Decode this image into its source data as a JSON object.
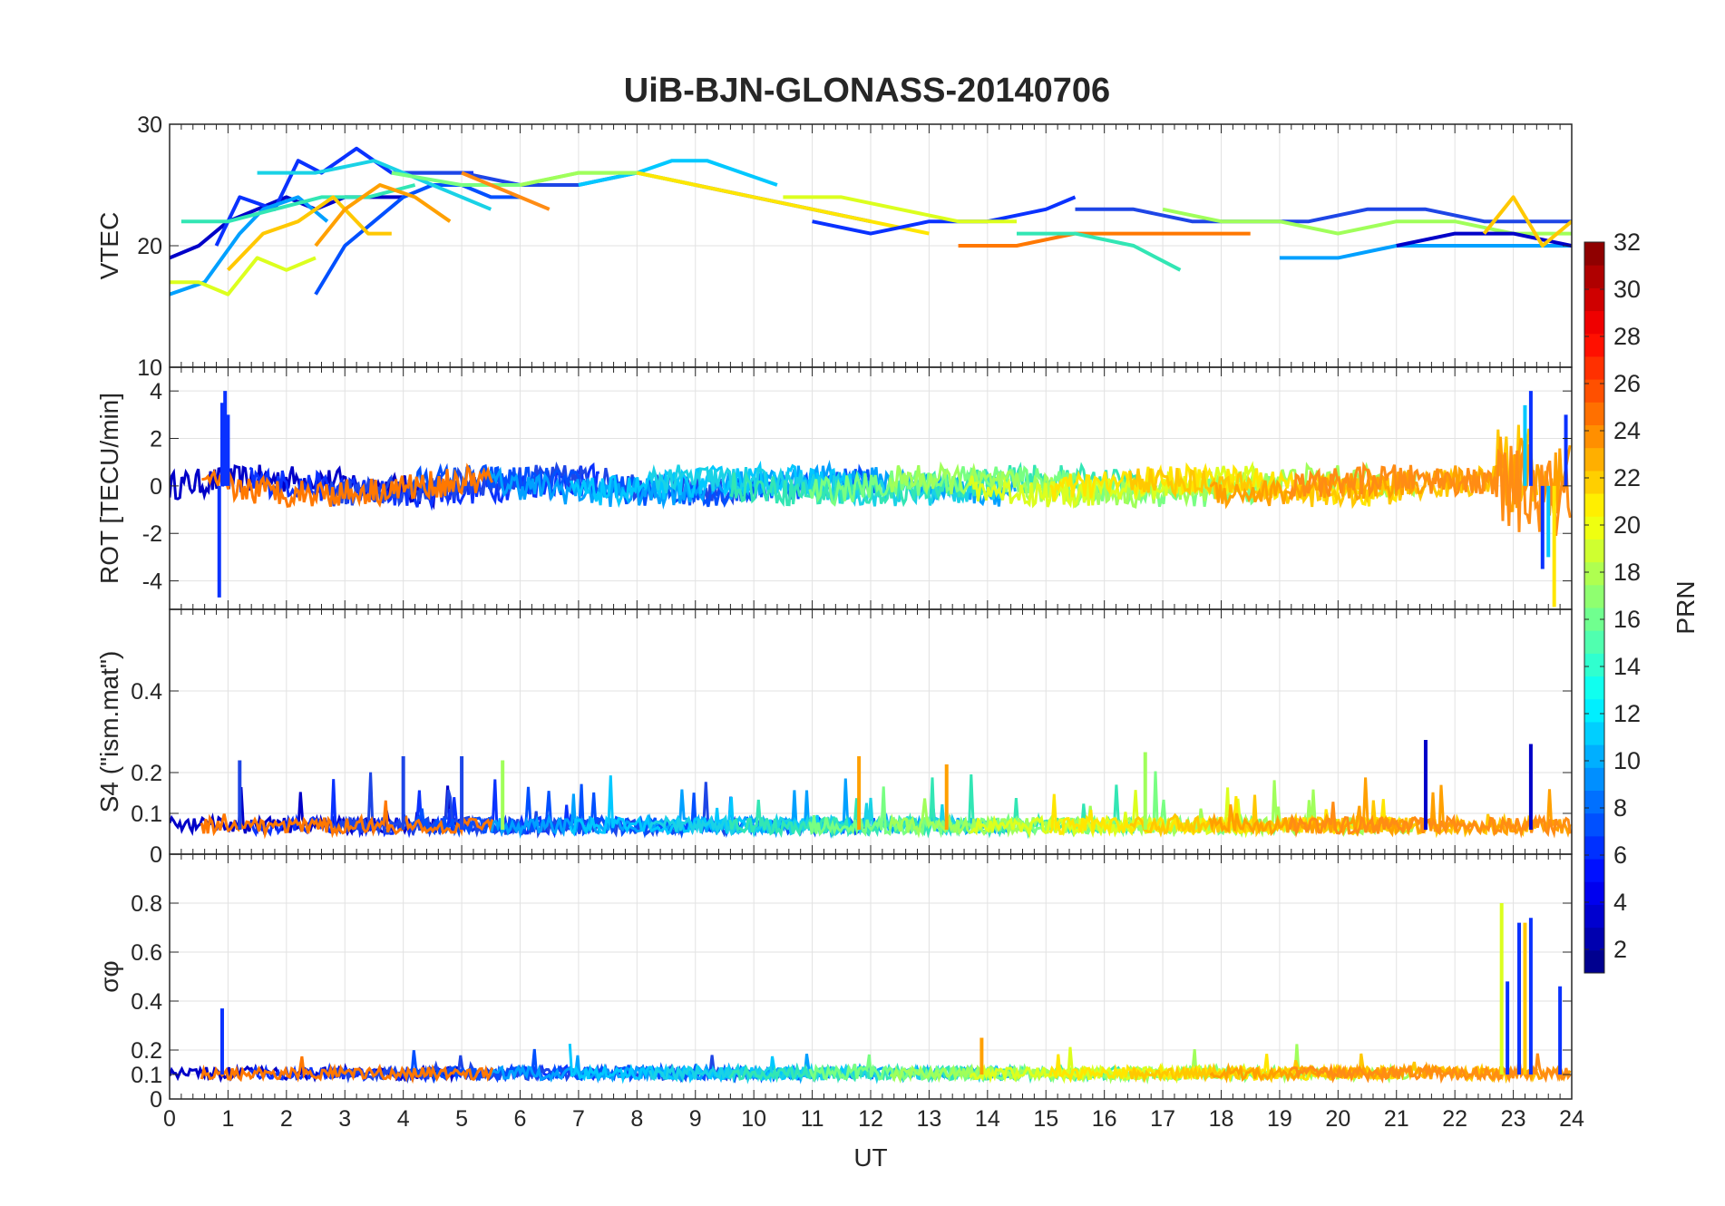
{
  "chart_data": {
    "type": "line",
    "title": "UiB-BJN-GLONASS-20140706",
    "xlabel": "UT",
    "xlim": [
      0,
      24
    ],
    "x_ticks": [
      "0",
      "1",
      "2",
      "3",
      "4",
      "5",
      "6",
      "7",
      "8",
      "9",
      "10",
      "11",
      "12",
      "13",
      "14",
      "15",
      "16",
      "17",
      "18",
      "19",
      "20",
      "21",
      "22",
      "23",
      "24"
    ],
    "grid": true,
    "panels": [
      {
        "id": "vtec",
        "ylabel": "VTEC",
        "ylim": [
          10,
          30
        ],
        "y_ticks": [
          "10",
          "20",
          "30"
        ],
        "series": [
          {
            "color": "#0000c8",
            "x": [
              0,
              0.5,
              1,
              1.5,
              2,
              2.5,
              3,
              3.5,
              4
            ],
            "y": [
              19,
              20,
              22,
              23,
              24,
              23,
              24,
              24,
              24
            ]
          },
          {
            "color": "#0a32ff",
            "x": [
              0.8,
              1.2,
              1.8,
              2.2,
              2.6,
              3.2,
              3.8,
              4.5,
              5.2
            ],
            "y": [
              20,
              24,
              23,
              27,
              26,
              28,
              26,
              26,
              26
            ]
          },
          {
            "color": "#1e46e6",
            "x": [
              4,
              5,
              6,
              7,
              8,
              9,
              10,
              11,
              12
            ],
            "y": [
              26,
              26,
              25,
              25,
              26,
              25,
              24,
              23,
              22
            ]
          },
          {
            "color": "#0050ff",
            "x": [
              2.5,
              3.0,
              3.5,
              4.0,
              4.5,
              5.0,
              5.5,
              6.0
            ],
            "y": [
              16,
              20,
              22,
              24,
              25,
              25,
              24,
              24
            ]
          },
          {
            "color": "#00a0ff",
            "x": [
              0,
              0.6,
              1.2,
              1.6,
              2.2,
              2.7
            ],
            "y": [
              16,
              17,
              21,
              23,
              24,
              22
            ]
          },
          {
            "color": "#00c8ff",
            "x": [
              7,
              8,
              8.6,
              9.2,
              9.8,
              10.4
            ],
            "y": [
              25,
              26,
              27,
              27,
              26,
              25
            ]
          },
          {
            "color": "#19d2e6",
            "x": [
              1.5,
              2.5,
              3.5,
              4.5,
              5.5
            ],
            "y": [
              26,
              26,
              27,
              25,
              23
            ]
          },
          {
            "color": "#32e6b4",
            "x": [
              0.2,
              1,
              1.8,
              2.6,
              3.4,
              4.2
            ],
            "y": [
              22,
              22,
              23,
              24,
              24,
              25
            ]
          },
          {
            "color": "#78ff82",
            "x": [
              3.8,
              5,
              6,
              7,
              8,
              9
            ],
            "y": [
              26,
              25,
              25,
              26,
              26,
              25
            ]
          },
          {
            "color": "#a0ff5a",
            "x": [
              6,
              7,
              8,
              9
            ],
            "y": [
              25,
              26,
              26,
              25
            ]
          },
          {
            "color": "#dcff1e",
            "x": [
              0,
              0.5,
              1,
              1.5,
              2,
              2.5
            ],
            "y": [
              17,
              17,
              16,
              19,
              18,
              19
            ]
          },
          {
            "color": "#ffe600",
            "x": [
              8,
              9,
              10,
              11,
              12,
              13
            ],
            "y": [
              26,
              25,
              24,
              23,
              22,
              21
            ]
          },
          {
            "color": "#ffc800",
            "x": [
              1,
              1.6,
              2.2,
              2.8,
              3.4,
              3.8
            ],
            "y": [
              18,
              21,
              22,
              24,
              21,
              21
            ]
          },
          {
            "color": "#ffa000",
            "x": [
              2.5,
              3,
              3.6,
              4.2,
              4.8
            ],
            "y": [
              20,
              23,
              25,
              24,
              22
            ]
          },
          {
            "color": "#ff8c14",
            "x": [
              5,
              5.5,
              6,
              6.5
            ],
            "y": [
              26,
              25,
              24,
              23
            ]
          },
          {
            "color": "#ff7800",
            "x": [
              13.5,
              14.5,
              15.5,
              16.5,
              17.5,
              18.5
            ],
            "y": [
              20,
              20,
              21,
              21,
              21,
              21
            ]
          },
          {
            "color": "#0a32ff",
            "x": [
              11,
              12,
              13,
              14,
              15,
              15.5
            ],
            "y": [
              22,
              21,
              22,
              22,
              23,
              24
            ]
          },
          {
            "color": "#1e46e6",
            "x": [
              15.5,
              16.5,
              17.5,
              18.5,
              19.5,
              20.5,
              21.5,
              22.5,
              23.5,
              24
            ],
            "y": [
              23,
              23,
              22,
              22,
              22,
              23,
              23,
              22,
              22,
              22
            ]
          },
          {
            "color": "#00a0ff",
            "x": [
              19,
              20,
              21,
              22,
              23,
              24
            ],
            "y": [
              19,
              19,
              20,
              20,
              20,
              20
            ]
          },
          {
            "color": "#32e6b4",
            "x": [
              14.5,
              15.5,
              16.5,
              17.3
            ],
            "y": [
              21,
              21,
              20,
              18
            ]
          },
          {
            "color": "#a0ff5a",
            "x": [
              17,
              18,
              19,
              20,
              21,
              22,
              23,
              24
            ],
            "y": [
              23,
              22,
              22,
              21,
              22,
              22,
              21,
              21
            ]
          },
          {
            "color": "#dcff1e",
            "x": [
              10.5,
              11.5,
              12.5,
              13.5,
              14.5
            ],
            "y": [
              24,
              24,
              23,
              22,
              22
            ]
          },
          {
            "color": "#0000c8",
            "x": [
              21,
              22,
              23,
              24
            ],
            "y": [
              20,
              21,
              21,
              20
            ]
          },
          {
            "color": "#ffc800",
            "x": [
              22.5,
              23,
              23.5,
              24
            ],
            "y": [
              21,
              24,
              20,
              22
            ]
          }
        ]
      },
      {
        "id": "rot",
        "ylabel": "ROT [TECU/min]",
        "ylim": [
          -5.2,
          5
        ],
        "y_ticks": [
          "-4",
          "-2",
          "0",
          "2",
          "4"
        ],
        "spikes": [
          {
            "color": "#0a32ff",
            "x": [
              0.85,
              0.9,
              0.95,
              1.0
            ],
            "y": [
              -4.7,
              3.5,
              4,
              3
            ]
          },
          {
            "color": "#ffe600",
            "x": [
              23.7
            ],
            "y": [
              -5.1
            ]
          },
          {
            "color": "#0a32ff",
            "x": [
              23.3,
              23.5,
              23.9
            ],
            "y": [
              4,
              -3.5,
              3
            ]
          },
          {
            "color": "#00c8ff",
            "x": [
              23.2,
              23.6
            ],
            "y": [
              3.4,
              -3
            ]
          }
        ]
      },
      {
        "id": "s4",
        "ylabel": "S4 (\"ism.mat\")",
        "ylim": [
          0,
          0.6
        ],
        "y_ticks": [
          "0",
          "0.1",
          "0.2",
          "0.4"
        ],
        "spikes": [
          {
            "color": "#0000c8",
            "x": [
              21.5,
              23.3
            ],
            "y": [
              0.28,
              0.27
            ]
          },
          {
            "color": "#1e46e6",
            "x": [
              4.0,
              5.0,
              1.2
            ],
            "y": [
              0.24,
              0.24,
              0.23
            ]
          },
          {
            "color": "#a0ff5a",
            "x": [
              16.7,
              5.7
            ],
            "y": [
              0.25,
              0.23
            ]
          },
          {
            "color": "#ffa000",
            "x": [
              13.3,
              11.8
            ],
            "y": [
              0.22,
              0.24
            ]
          }
        ]
      },
      {
        "id": "sigma_phi",
        "ylabel": "σφ",
        "ylim": [
          0,
          1
        ],
        "y_ticks": [
          "0",
          "0.1",
          "0.2",
          "0.4",
          "0.6",
          "0.8"
        ],
        "spikes": [
          {
            "color": "#dcff1e",
            "x": [
              22.8
            ],
            "y": [
              0.8
            ]
          },
          {
            "color": "#0a32ff",
            "x": [
              22.9,
              23.1,
              23.3,
              23.8
            ],
            "y": [
              0.48,
              0.72,
              0.74,
              0.46
            ]
          },
          {
            "color": "#ffc800",
            "x": [
              23.2
            ],
            "y": [
              0.72
            ]
          },
          {
            "color": "#0a32ff",
            "x": [
              0.9
            ],
            "y": [
              0.37
            ]
          },
          {
            "color": "#ffa000",
            "x": [
              13.9
            ],
            "y": [
              0.25
            ]
          }
        ]
      }
    ],
    "colorbar": {
      "label": "PRN",
      "range": [
        1,
        32
      ],
      "ticks": [
        "2",
        "4",
        "6",
        "8",
        "10",
        "12",
        "14",
        "16",
        "18",
        "20",
        "22",
        "24",
        "26",
        "28",
        "30",
        "32"
      ],
      "colormap": "jet"
    }
  }
}
